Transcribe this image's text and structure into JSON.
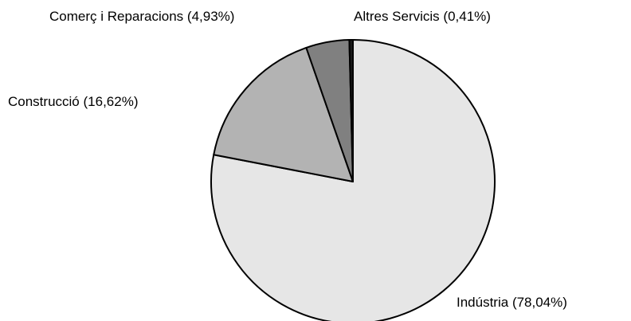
{
  "chart_data": {
    "type": "pie",
    "categories": [
      "Indústria",
      "Construcció",
      "Comerç i Reparacions",
      "Altres Servicis"
    ],
    "values": [
      78.04,
      16.62,
      4.93,
      0.41
    ],
    "value_labels": [
      "(78,04%)",
      "(16,62%)",
      "(4,93%)",
      "(0,41%)"
    ],
    "colors": [
      "#e6e6e6",
      "#b3b3b3",
      "#808080",
      "#1a1a1a"
    ]
  }
}
